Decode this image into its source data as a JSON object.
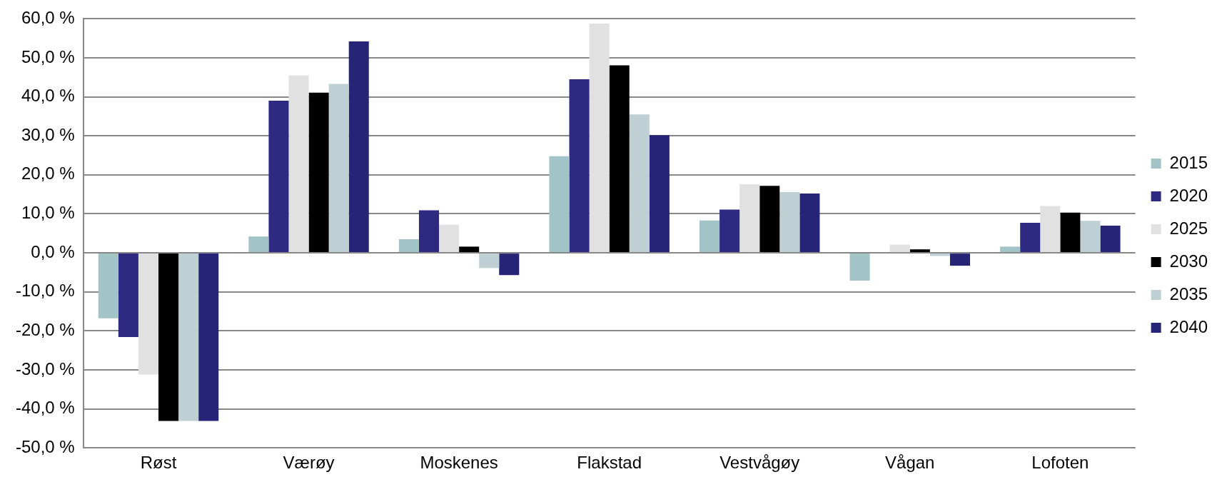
{
  "chart_data": {
    "type": "bar",
    "categories": [
      "Røst",
      "Værøy",
      "Moskenes",
      "Flakstad",
      "Vestvågøy",
      "Vågan",
      "Lofoten"
    ],
    "series": [
      {
        "name": "2015",
        "color": "#a3c4c7",
        "values": [
          -16.8,
          4.2,
          3.5,
          24.8,
          8.3,
          -7.1,
          1.6
        ]
      },
      {
        "name": "2020",
        "color": "#2e2a82",
        "values": [
          -21.6,
          39.0,
          10.9,
          44.5,
          11.1,
          0,
          7.7
        ]
      },
      {
        "name": "2025",
        "color": "#e1e1e1",
        "values": [
          -31.2,
          45.5,
          7.2,
          58.8,
          17.6,
          2.1,
          12.0
        ]
      },
      {
        "name": "2030",
        "color": "#000000",
        "values": [
          -43.1,
          41.1,
          1.6,
          48.1,
          17.2,
          0.9,
          10.3
        ]
      },
      {
        "name": "2035",
        "color": "#bfd0d4",
        "values": [
          -43.1,
          43.3,
          -3.9,
          35.5,
          15.6,
          -0.8,
          8.2
        ]
      },
      {
        "name": "2040",
        "color": "#262477",
        "values": [
          -43.1,
          54.2,
          -5.7,
          30.2,
          15.2,
          -3.3,
          7.0
        ]
      }
    ],
    "ylim": [
      -50,
      60
    ],
    "yticks": [
      {
        "value": -50,
        "label": "-50,0 %"
      },
      {
        "value": -40,
        "label": "-40,0 %"
      },
      {
        "value": -30,
        "label": "-30,0 %"
      },
      {
        "value": -20,
        "label": "-20,0 %"
      },
      {
        "value": -10,
        "label": "-10,0 %"
      },
      {
        "value": 0,
        "label": "0,0 %"
      },
      {
        "value": 10,
        "label": "10,0 %"
      },
      {
        "value": 20,
        "label": "20,0 %"
      },
      {
        "value": 30,
        "label": "30,0 %"
      },
      {
        "value": 40,
        "label": "40,0 %"
      },
      {
        "value": 50,
        "label": "50,0 %"
      },
      {
        "value": 60,
        "label": "60,0 %"
      }
    ],
    "grid": "y",
    "legend": "right"
  }
}
